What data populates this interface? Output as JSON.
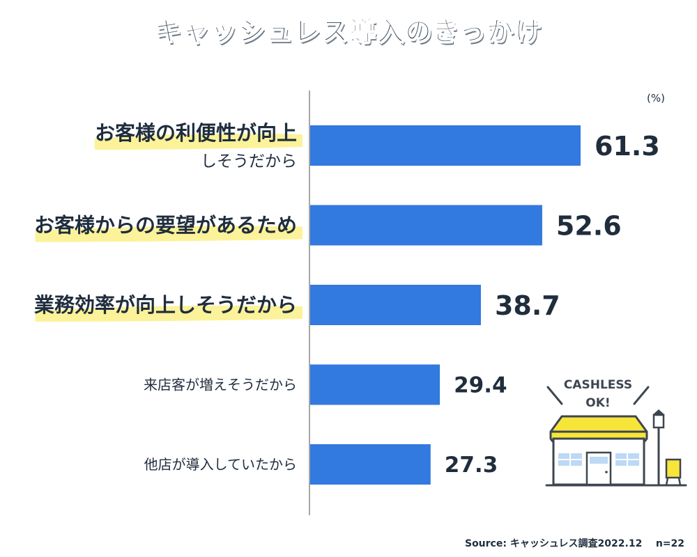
{
  "chart_data": {
    "type": "bar",
    "orientation": "horizontal",
    "title": "キャッシュレス導入のきっかけ",
    "unit": "(%)",
    "categories": [
      [
        "お客様の利便性が向上",
        "しそうだから"
      ],
      [
        "お客様からの要望があるため"
      ],
      [
        "業務効率が向上しそうだから"
      ],
      [
        "来店客が増えそうだから"
      ],
      [
        "他店が導入していたから"
      ]
    ],
    "highlighted": [
      true,
      true,
      true,
      false,
      false
    ],
    "values": [
      61.3,
      52.6,
      38.7,
      29.4,
      27.3
    ],
    "value_labels": [
      "61.3",
      "52.6",
      "38.7",
      "29.4",
      "27.3"
    ],
    "xlim": [
      0,
      100
    ],
    "bar_color": "#3279e0",
    "highlight_color": "#fcf29a",
    "source": "Source: キャッシュレス調査2022.12",
    "n_label": "n=22"
  },
  "illustration": {
    "sign_line1": "CASHLESS",
    "sign_line2": "OK!"
  },
  "colors": {
    "awning_yellow": "#f7e53a",
    "window_blue": "#bcd9f5",
    "outline": "#3d4650"
  }
}
